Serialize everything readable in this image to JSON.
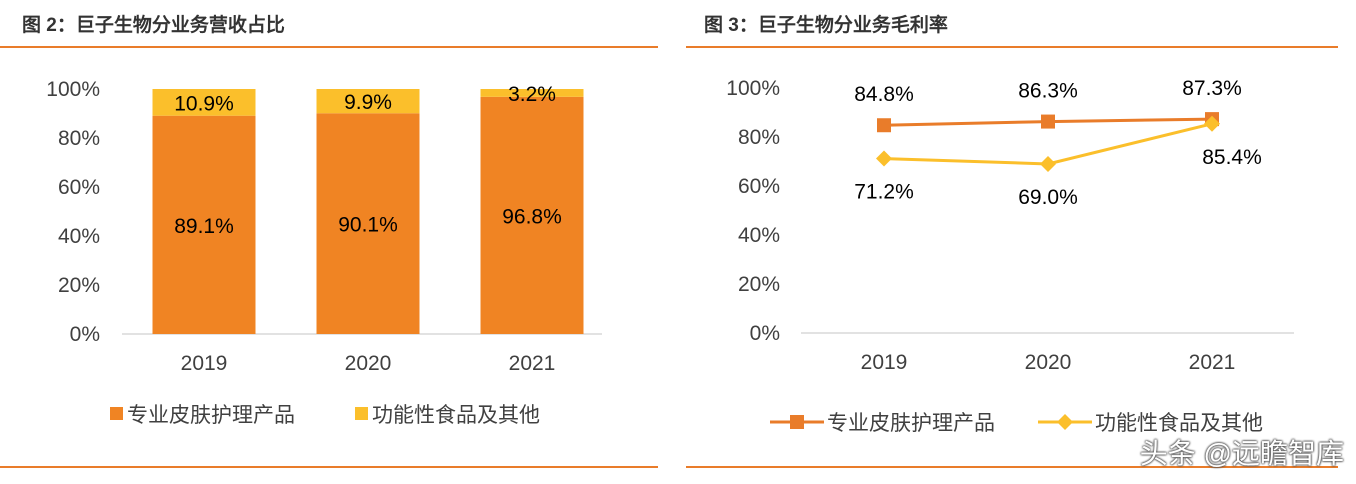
{
  "figures": {
    "left": {
      "title": "图 2：巨子生物分业务营收占比"
    },
    "right": {
      "title": "图 3：巨子生物分业务毛利率"
    }
  },
  "watermark": "头条 @远瞻智库",
  "chart_data": [
    {
      "type": "bar",
      "stacked": true,
      "title": "图 2：巨子生物分业务营收占比",
      "categories": [
        "2019",
        "2020",
        "2021"
      ],
      "series": [
        {
          "name": "专业皮肤护理产品",
          "values": [
            89.1,
            90.1,
            96.8
          ],
          "labels": [
            "89.1%",
            "90.1%",
            "96.8%"
          ],
          "color": "#f08423"
        },
        {
          "name": "功能性食品及其他",
          "values": [
            10.9,
            9.9,
            3.2
          ],
          "labels": [
            "10.9%",
            "9.9%",
            "3.2%"
          ],
          "color": "#fbbf2b"
        }
      ],
      "yticks": [
        "0%",
        "20%",
        "40%",
        "60%",
        "80%",
        "100%"
      ],
      "ylim": [
        0,
        100
      ],
      "xlabel": "",
      "ylabel": "",
      "grid": false,
      "legend_position": "bottom"
    },
    {
      "type": "line",
      "title": "图 3：巨子生物分业务毛利率",
      "categories": [
        "2019",
        "2020",
        "2021"
      ],
      "series": [
        {
          "name": "专业皮肤护理产品",
          "values": [
            84.8,
            86.3,
            87.3
          ],
          "labels": [
            "84.8%",
            "86.3%",
            "87.3%"
          ],
          "color": "#e97c2a",
          "marker": "square"
        },
        {
          "name": "功能性食品及其他",
          "values": [
            71.2,
            69.0,
            85.4
          ],
          "labels": [
            "71.2%",
            "69.0%",
            "85.4%"
          ],
          "color": "#fbbf2b",
          "marker": "diamond"
        }
      ],
      "yticks": [
        "0%",
        "20%",
        "40%",
        "60%",
        "80%",
        "100%"
      ],
      "ylim": [
        0,
        100
      ],
      "xlabel": "",
      "ylabel": "",
      "grid": false,
      "legend_position": "bottom"
    }
  ]
}
